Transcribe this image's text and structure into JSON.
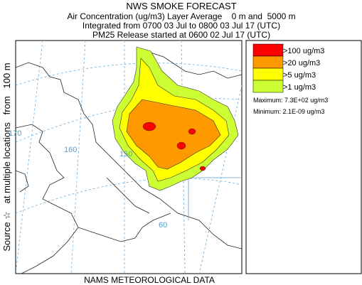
{
  "header": {
    "title": "NWS SMOKE FORECAST",
    "line1": "Air Concentration (ug/m3) Layer Average    0 m and  5000 m",
    "line2": "Integrated from 0700 03 Jul to 0800 03 Jul 17 (UTC)",
    "line3": "PM25 Release started at 0600 02 Jul 17 (UTC)"
  },
  "side_label": "Source ☆   at multiple locations   from   100 m",
  "footer": "NAMS METEOROLOGICAL DATA",
  "map_labels": [
    "170",
    "160",
    "150",
    "60"
  ],
  "legend": {
    "items": [
      {
        "label": ">100 ug/m3",
        "color": "#ff0000"
      },
      {
        "label": ">20 ug/m3",
        "color": "#ff9900"
      },
      {
        "label": ">5 ug/m3",
        "color": "#ffff00"
      },
      {
        "label": ">1 ug/m3",
        "color": "#ccff33"
      }
    ],
    "maximum": "Maximum: 7.3E+02 ug/m3",
    "minimum": "Minimum: 2.1E-09 ug/m3"
  }
}
